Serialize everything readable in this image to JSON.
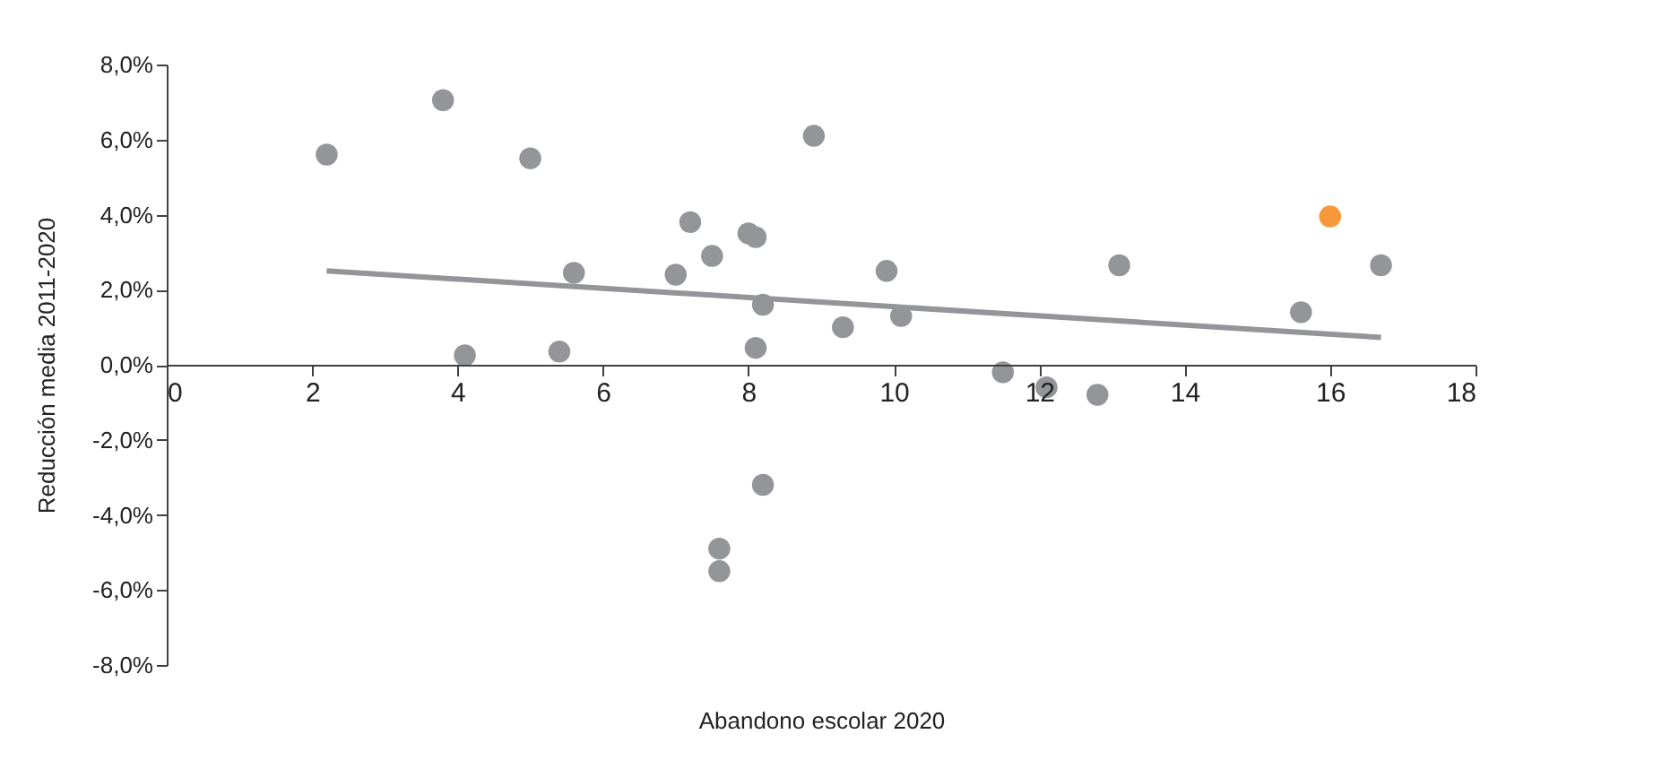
{
  "chart_data": {
    "type": "scatter",
    "xlabel": "Abandono escolar 2020",
    "ylabel": "Reducción media 2011-2020",
    "xlim": [
      0,
      18
    ],
    "xticks": [
      0,
      2,
      4,
      6,
      8,
      10,
      12,
      14,
      16,
      18
    ],
    "ylim": [
      -8,
      8
    ],
    "yticks": [
      {
        "value": -8,
        "label": "-8,0%"
      },
      {
        "value": -6,
        "label": "-6,0%"
      },
      {
        "value": -4,
        "label": "-4,0%"
      },
      {
        "value": -2,
        "label": "-2,0%"
      },
      {
        "value": 0,
        "label": "0,0%"
      },
      {
        "value": 2,
        "label": "2,0%"
      },
      {
        "value": 4,
        "label": "4,0%"
      },
      {
        "value": 6,
        "label": "6,0%"
      },
      {
        "value": 8,
        "label": "8,0%"
      }
    ],
    "grid": false,
    "series": [
      {
        "type": "scatter",
        "color": "#939598",
        "marker": "circle",
        "x": [
          2.2,
          3.8,
          4.1,
          5.0,
          5.4,
          5.6,
          7.0,
          7.2,
          7.5,
          8.0,
          8.1,
          8.9,
          8.2,
          8.1,
          9.3,
          9.9,
          10.1,
          11.5,
          12.1,
          12.8,
          13.1,
          15.6,
          16.7,
          8.2,
          7.6,
          7.6
        ],
        "values": [
          5.6,
          7.05,
          0.25,
          5.5,
          0.35,
          2.45,
          2.4,
          3.8,
          2.9,
          3.5,
          3.4,
          6.1,
          1.6,
          0.45,
          1.0,
          2.5,
          1.3,
          -0.2,
          -0.6,
          -0.8,
          2.65,
          1.4,
          2.65,
          -3.2,
          -4.9,
          -5.5
        ]
      },
      {
        "type": "scatter",
        "color": "#f7993a",
        "marker": "circle",
        "x": [
          16.0
        ],
        "values": [
          3.95
        ]
      },
      {
        "type": "line",
        "color": "#939598",
        "line_style": "solid",
        "marker": "none",
        "x": [
          2.2,
          16.7
        ],
        "values": [
          2.5,
          0.73
        ]
      }
    ]
  }
}
